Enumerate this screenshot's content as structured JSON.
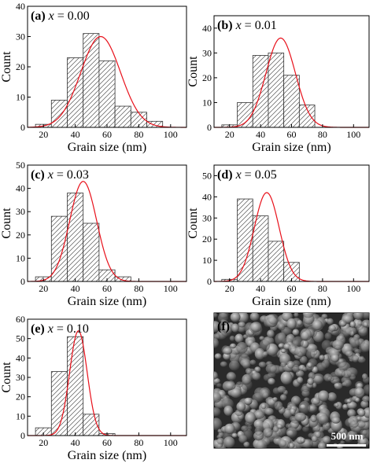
{
  "chart_data": [
    {
      "type": "bar",
      "panel_label": "(a)",
      "variable": "x",
      "value_text": "= 0.00",
      "xlabel": "Grain size (nm)",
      "ylabel": "Count",
      "xlim": [
        10,
        110
      ],
      "ylim": [
        0,
        40
      ],
      "xticks": [
        20,
        40,
        60,
        80,
        100
      ],
      "yticks": [
        0,
        10,
        20,
        30,
        40
      ],
      "bin_width": 10,
      "bins": [
        20,
        30,
        40,
        50,
        60,
        70,
        80,
        90
      ],
      "values": [
        1,
        9,
        23,
        31,
        22,
        7,
        5,
        2
      ],
      "fit": {
        "type": "gaussian",
        "amplitude": 30,
        "center": 56,
        "sigma": 12.5
      },
      "bar_pattern": "diagonal-hatch",
      "fit_color": "#e8101a"
    },
    {
      "type": "bar",
      "panel_label": "(b)",
      "variable": "x",
      "value_text": "= 0.01",
      "xlabel": "Grain size (nm)",
      "ylabel": "Count",
      "xlim": [
        10,
        110
      ],
      "ylim": [
        0,
        45
      ],
      "xticks": [
        20,
        40,
        60,
        80,
        100
      ],
      "yticks": [
        0,
        10,
        20,
        30,
        40
      ],
      "bin_width": 10,
      "bins": [
        20,
        30,
        40,
        50,
        60,
        70
      ],
      "values": [
        1,
        10,
        29,
        30,
        21,
        9
      ],
      "fit": {
        "type": "gaussian",
        "amplitude": 36,
        "center": 53,
        "sigma": 9.5
      },
      "bar_pattern": "diagonal-hatch",
      "fit_color": "#e8101a"
    },
    {
      "type": "bar",
      "panel_label": "(c)",
      "variable": "x",
      "value_text": "= 0.03",
      "xlabel": "Grain size (nm)",
      "ylabel": "Count",
      "xlim": [
        10,
        110
      ],
      "ylim": [
        0,
        50
      ],
      "xticks": [
        20,
        40,
        60,
        80,
        100
      ],
      "yticks": [
        0,
        10,
        20,
        30,
        40,
        50
      ],
      "bin_width": 10,
      "bins": [
        20,
        30,
        40,
        50,
        60,
        70
      ],
      "values": [
        2,
        28,
        38,
        25,
        5,
        2
      ],
      "fit": {
        "type": "gaussian",
        "amplitude": 43,
        "center": 45,
        "sigma": 8.5
      },
      "bar_pattern": "diagonal-hatch",
      "fit_color": "#e8101a"
    },
    {
      "type": "bar",
      "panel_label": "(d)",
      "variable": "x",
      "value_text": "= 0.05",
      "xlabel": "Grain size (nm)",
      "ylabel": "Count",
      "xlim": [
        10,
        110
      ],
      "ylim": [
        0,
        55
      ],
      "xticks": [
        20,
        40,
        60,
        80,
        100
      ],
      "yticks": [
        0,
        10,
        20,
        30,
        40,
        50
      ],
      "bin_width": 10,
      "bins": [
        20,
        30,
        40,
        50,
        60
      ],
      "values": [
        1,
        39,
        31,
        19,
        9
      ],
      "fit": {
        "type": "gaussian",
        "amplitude": 42,
        "center": 44,
        "sigma": 8.0
      },
      "bar_pattern": "diagonal-hatch",
      "fit_color": "#e8101a"
    },
    {
      "type": "bar",
      "panel_label": "(e)",
      "variable": "x",
      "value_text": "= 0.10",
      "xlabel": "Grain size (nm)",
      "ylabel": "Count",
      "xlim": [
        10,
        110
      ],
      "ylim": [
        0,
        60
      ],
      "xticks": [
        20,
        40,
        60,
        80,
        100
      ],
      "yticks": [
        0,
        10,
        20,
        30,
        40,
        50,
        60
      ],
      "bin_width": 10,
      "bins": [
        20,
        30,
        40,
        50,
        60
      ],
      "values": [
        4,
        33,
        51,
        11,
        1
      ],
      "fit": {
        "type": "gaussian",
        "amplitude": 54,
        "center": 42,
        "sigma": 5.5
      },
      "bar_pattern": "diagonal-hatch",
      "fit_color": "#e8101a"
    }
  ],
  "sem_panel": {
    "label": "(f)",
    "scale_bar_text": "500 nm"
  }
}
